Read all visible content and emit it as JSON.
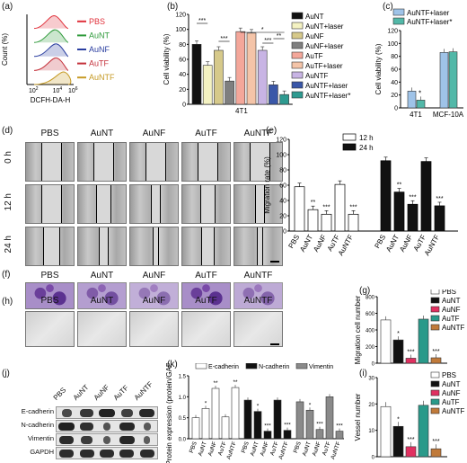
{
  "panels": {
    "a": "(a)",
    "b": "(b)",
    "c": "(c)",
    "d": "(d)",
    "e": "(e)",
    "f": "(f)",
    "g": "(g)",
    "h": "(h)",
    "i": "(i)",
    "j": "(j)",
    "k": "(k)"
  },
  "groups": [
    "PBS",
    "AuNT",
    "AuNF",
    "AuTF",
    "AuNTF"
  ],
  "panel_a": {
    "ylabel": "Count (%)",
    "xlabel": "DCFH-DA-H",
    "ticks": [
      "10^2",
      "10^4",
      "10^6"
    ],
    "legend": [
      "PBS",
      "AuNT",
      "AuNF",
      "AuTF",
      "AuNTF"
    ],
    "colors": [
      "#e0303a",
      "#2e9a3a",
      "#2a3ea0",
      "#c4303a",
      "#c69a24"
    ]
  },
  "panel_d": {
    "rows": [
      "0 h",
      "12 h",
      "24 h"
    ]
  },
  "chart_data": [
    {
      "panel": "b",
      "type": "bar",
      "ylabel": "Cell viability (%)",
      "xlabel": "4T1",
      "ylim": [
        0,
        120
      ],
      "yticks": [
        0,
        20,
        40,
        60,
        80,
        100,
        120
      ],
      "categories": [
        "AuNT",
        "AuNT+laser",
        "AuNF",
        "AuNF+laser",
        "AuTF",
        "AuTF+laser",
        "AuNTF",
        "AuNTF+laser",
        "AuNTF+laser*"
      ],
      "values": [
        80,
        52,
        72,
        31,
        97,
        95,
        72,
        26,
        13
      ],
      "colors": [
        "#111111",
        "#f4f2c2",
        "#d6c98a",
        "#7f7f7f",
        "#f4a79a",
        "#f4c4a8",
        "#c8b4e4",
        "#3a57a8",
        "#2e9a90"
      ],
      "significance": [
        "***",
        "***",
        "***",
        "**",
        "*"
      ]
    },
    {
      "panel": "c",
      "type": "bar",
      "ylabel": "Cell viability (%)",
      "categories": [
        "4T1",
        "MCF-10A"
      ],
      "series": [
        {
          "name": "AuNTF+laser",
          "values": [
            26,
            86
          ],
          "color": "#9fc3e8"
        },
        {
          "name": "AuNTF+laser*",
          "values": [
            12,
            87
          ],
          "color": "#52b8a8"
        }
      ],
      "ylim": [
        0,
        120
      ],
      "yticks": [
        0,
        20,
        40,
        60,
        80,
        100,
        120
      ],
      "significance": [
        "*"
      ]
    },
    {
      "panel": "e",
      "type": "bar",
      "ylabel": "Migration rate (%)",
      "categories": [
        "PBS",
        "AuNT",
        "AuNF",
        "AuTF",
        "AuNTF"
      ],
      "series": [
        {
          "name": "12 h",
          "values": [
            58,
            28,
            22,
            61,
            22
          ]
        },
        {
          "name": "24 h",
          "values": [
            92,
            51,
            35,
            91,
            33
          ]
        }
      ],
      "ylim": [
        0,
        120
      ],
      "yticks": [
        0,
        20,
        40,
        60,
        80,
        100,
        120
      ],
      "significance": [
        "**",
        "***",
        "***",
        "**",
        "***",
        "***"
      ]
    },
    {
      "panel": "g",
      "type": "bar",
      "ylabel": "Migration cell number",
      "categories": [
        "PBS",
        "AuNT",
        "AuNF",
        "AuTF",
        "AuNTF"
      ],
      "values": [
        520,
        280,
        60,
        530,
        65
      ],
      "colors": [
        "#ffffff",
        "#111111",
        "#e03060",
        "#2a9a8a",
        "#c07a3a"
      ],
      "ylim": [
        0,
        800
      ],
      "yticks": [
        0,
        200,
        400,
        600,
        800
      ],
      "legend": [
        "PBS",
        "AuNT",
        "AuNF",
        "AuTF",
        "AuNTF"
      ],
      "significance": [
        "*",
        "***",
        "***"
      ]
    },
    {
      "panel": "i",
      "type": "bar",
      "ylabel": "Vessel number",
      "categories": [
        "PBS",
        "AuNT",
        "AuNF",
        "AuTF",
        "AuNTF"
      ],
      "values": [
        19,
        11.5,
        3.8,
        19.5,
        3
      ],
      "colors": [
        "#ffffff",
        "#111111",
        "#e03060",
        "#2a9a8a",
        "#c07a3a"
      ],
      "ylim": [
        0,
        30
      ],
      "yticks": [
        0,
        10,
        20,
        30
      ],
      "legend": [
        "PBS",
        "AuNT",
        "AuNF",
        "AuTF",
        "AuNTF"
      ],
      "significance": [
        "*",
        "***",
        "***"
      ]
    },
    {
      "panel": "k",
      "type": "bar",
      "ylabel": "Protein expression (protein/GAPDH)",
      "categories": [
        "PBS",
        "AuNT",
        "AuNF",
        "AuTF",
        "AuNTF"
      ],
      "series": [
        {
          "name": "E-cadherin",
          "values": [
            0.5,
            0.72,
            1.2,
            0.52,
            1.22
          ],
          "color": "#ffffff"
        },
        {
          "name": "N-cadherin",
          "values": [
            0.92,
            0.65,
            0.18,
            0.92,
            0.2
          ],
          "color": "#111111"
        },
        {
          "name": "Vimentin",
          "values": [
            0.88,
            0.68,
            0.22,
            1.0,
            0.18
          ],
          "color": "#8a8a8a"
        }
      ],
      "ylim": [
        0,
        1.5
      ],
      "yticks": [
        0.0,
        0.5,
        1.0,
        1.5
      ],
      "significance": [
        "*",
        "**",
        "**",
        "*",
        "***",
        "***",
        "*",
        "***",
        "***"
      ]
    }
  ],
  "panel_j": {
    "rows": [
      "E-cadherin",
      "N-cadherin",
      "Vimentin",
      "GAPDH"
    ],
    "cols": [
      "PBS",
      "AuNT",
      "AuNF",
      "AuTF",
      "AuNTF"
    ]
  }
}
